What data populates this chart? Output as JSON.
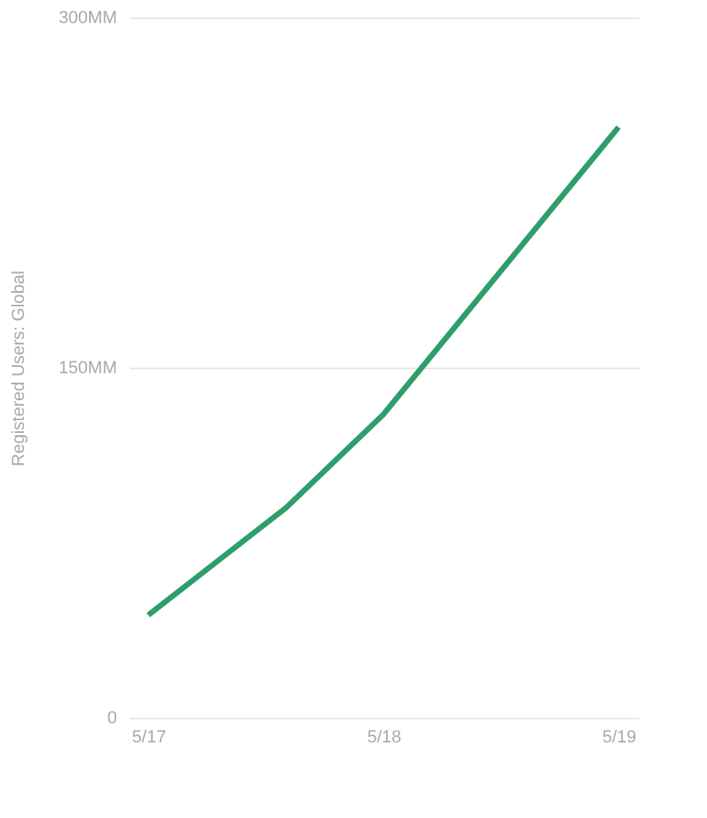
{
  "chart_data": {
    "type": "line",
    "ylabel": "Registered Users: Global",
    "x": [
      "2017-05",
      "2017-12",
      "2018-05",
      "2019-05"
    ],
    "series": [
      {
        "color": "#2e9e6b",
        "values": [
          44,
          90,
          130,
          253
        ]
      }
    ],
    "xlim": [
      "2017-04",
      "2019-06"
    ],
    "xticks": [
      {
        "value": "2017-05",
        "label": "5/17"
      },
      {
        "value": "2018-05",
        "label": "5/18"
      },
      {
        "value": "2019-05",
        "label": "5/19"
      }
    ],
    "ylim": [
      0,
      300
    ],
    "yticks": [
      0,
      {
        "value": 150,
        "label": "150MM"
      },
      {
        "value": 300,
        "label": "300MM"
      }
    ],
    "grid": "y",
    "marker": "none",
    "line_style": "solid"
  }
}
